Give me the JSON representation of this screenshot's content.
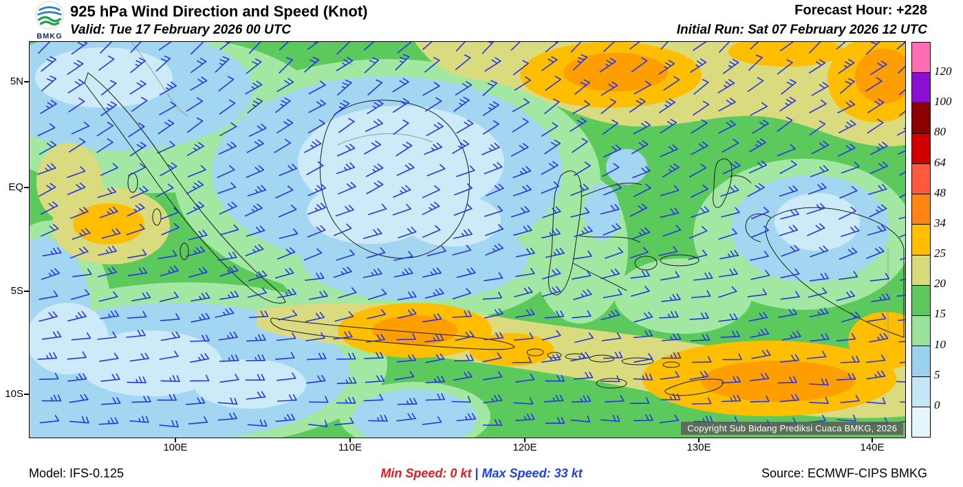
{
  "header": {
    "logo_text": "BMKG",
    "title": "925 hPa Wind Direction and Speed (Knot)",
    "valid": "Valid: Tue 17 February 2026 00 UTC",
    "forecast_hour": "Forecast Hour: +228",
    "initial_run": "Initial Run: Sat 07 February 2026 12 UTC"
  },
  "map": {
    "lat_ticks": [
      "5N",
      "EQ",
      "5S",
      "10S"
    ],
    "lon_ticks": [
      "100E",
      "110E",
      "120E",
      "130E",
      "140E"
    ],
    "copyright": "Copyright Sub Bidang Prediksi Cuaca BMKG, 2026"
  },
  "colorbar": {
    "labels": [
      "120",
      "100",
      "80",
      "64",
      "48",
      "34",
      "25",
      "20",
      "15",
      "10",
      "5",
      "0"
    ],
    "colors": [
      "#FF6EB4",
      "#8A0FD0",
      "#8B0000",
      "#D10000",
      "#FF5A3C",
      "#FF8414",
      "#FFBE00",
      "#D8DA7C",
      "#5DC85D",
      "#9BE39B",
      "#9CD2EF",
      "#C4E6F6",
      "#E6F4FB"
    ]
  },
  "footer": {
    "model": "Model: IFS-0.125",
    "min_speed_label": "Min Speed:",
    "min_speed_value": "0 kt",
    "separator": "|",
    "max_speed_label": "Max Speed:",
    "max_speed_value": "33 kt",
    "source": "Source: ECMWF-CIPS BMKG"
  },
  "palette": {
    "barb_blue": "#2633E8",
    "bin_0_5": "#CDEAF8",
    "bin_5_10": "#A3D6F0",
    "bin_10_15": "#A2E8A2",
    "bin_15_20": "#5CC95C",
    "bin_20_25": "#D9DB7E",
    "bin_25_34": "#FFBE00",
    "orange_deep": "#FF9E00",
    "min_red": "#E8191F",
    "max_blue": "#1F41E8"
  }
}
